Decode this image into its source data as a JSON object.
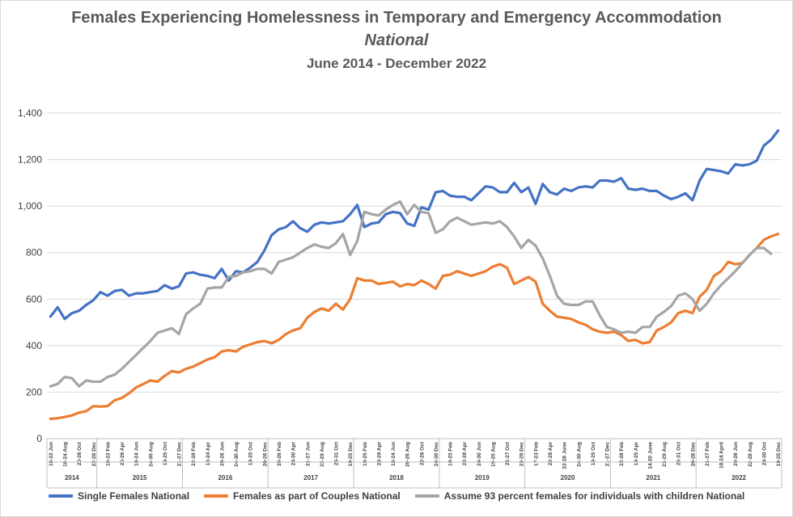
{
  "chart_data": {
    "type": "line",
    "title": "Females Experiencing Homelessness in Temporary and Emergency Accommodation",
    "subtitle": "National",
    "subtitle2": "June 2014 - December 2022",
    "ylim": [
      0,
      1400
    ],
    "yticks": [
      0,
      200,
      400,
      600,
      800,
      1000,
      1200,
      1400
    ],
    "ytick_labels": [
      "0",
      "200",
      "400",
      "600",
      "800",
      "1,000",
      "1,200",
      "1,400"
    ],
    "grid": true,
    "legend_position": "bottom",
    "x_labels": [
      "16-22 Jun",
      "18-24 Aug",
      "20-26 Oct",
      "22-28 Dec",
      "16-22 Feb",
      "20-26 Apr",
      "18-24 Jun",
      "24-30 Aug",
      "19-25 Oct",
      "21-27 Dec",
      "22-28 Feb",
      "18-24 Apr",
      "20-26 Jun",
      "24-30 Aug",
      "19-25 Oct",
      "20-26 Dec",
      "20-26 Feb",
      "24-30 Apr",
      "21-27 Jun",
      "23-29 Aug",
      "25-31 Oct",
      "19-25 Dec",
      "19-25 Feb",
      "23-29 Apr",
      "18-24 Jun",
      "20-26 Aug",
      "22-28 Oct",
      "24-30 Dec",
      "19-25 Feb",
      "22-28 Apr",
      "24-30 Jun",
      "19-25 Aug",
      "21-27 Oct",
      "23-29 Dec",
      "17-23 Feb",
      "22-28 Apr",
      "22-28 June",
      "24-30 Aug",
      "19-25 Oct",
      "21-27 Dec",
      "22-28 Feb",
      "19-25 Apr",
      "14-20 June",
      "23-29 Aug",
      "25-31 Oct",
      "20-26 Dec",
      "21-27 Feb",
      "18-24 April",
      "20-26 Jun",
      "22-28 Aug",
      "24-30 Oct",
      "19-25 Dec"
    ],
    "year_groups": [
      {
        "label": "2014",
        "months": 7
      },
      {
        "label": "2015",
        "months": 12
      },
      {
        "label": "2016",
        "months": 12
      },
      {
        "label": "2017",
        "months": 12
      },
      {
        "label": "2018",
        "months": 12
      },
      {
        "label": "2019",
        "months": 12
      },
      {
        "label": "2020",
        "months": 12
      },
      {
        "label": "2021",
        "months": 12
      },
      {
        "label": "2022",
        "months": 12
      }
    ],
    "n_points": 103,
    "series": [
      {
        "name": "Single Females National",
        "color": "#4472C4",
        "values": [
          525,
          565,
          515,
          540,
          550,
          575,
          595,
          630,
          615,
          635,
          640,
          615,
          625,
          625,
          630,
          635,
          660,
          645,
          655,
          710,
          715,
          705,
          700,
          690,
          730,
          680,
          720,
          715,
          735,
          760,
          810,
          875,
          900,
          910,
          935,
          905,
          890,
          920,
          930,
          925,
          930,
          935,
          965,
          1005,
          910,
          925,
          930,
          965,
          975,
          970,
          925,
          915,
          995,
          985,
          1060,
          1065,
          1045,
          1040,
          1040,
          1025,
          1055,
          1085,
          1080,
          1060,
          1060,
          1100,
          1060,
          1080,
          1010,
          1095,
          1060,
          1050,
          1075,
          1065,
          1080,
          1085,
          1080,
          1110,
          1110,
          1105,
          1120,
          1075,
          1070,
          1075,
          1065,
          1065,
          1045,
          1030,
          1040,
          1055,
          1025,
          1110,
          1160,
          1155,
          1150,
          1140,
          1180,
          1175,
          1180,
          1195,
          1260,
          1285,
          1325
        ]
      },
      {
        "name": "Females as part of Couples National",
        "color": "#ED7D31",
        "values": [
          85,
          88,
          93,
          100,
          112,
          118,
          140,
          138,
          140,
          165,
          175,
          195,
          220,
          235,
          250,
          245,
          270,
          290,
          285,
          300,
          310,
          325,
          340,
          350,
          375,
          380,
          375,
          395,
          405,
          415,
          420,
          410,
          425,
          450,
          465,
          475,
          520,
          545,
          560,
          550,
          580,
          555,
          600,
          690,
          680,
          680,
          665,
          670,
          675,
          655,
          665,
          660,
          680,
          665,
          645,
          700,
          705,
          720,
          710,
          700,
          710,
          720,
          740,
          750,
          735,
          665,
          680,
          695,
          675,
          580,
          550,
          525,
          520,
          515,
          500,
          490,
          470,
          460,
          455,
          460,
          445,
          420,
          425,
          410,
          415,
          465,
          480,
          500,
          540,
          550,
          540,
          610,
          640,
          700,
          720,
          760,
          750,
          755,
          790,
          820,
          855,
          870,
          880
        ]
      },
      {
        "name": "Assume 93 percent females for individuals with children National",
        "color": "#A5A5A5",
        "values": [
          225,
          235,
          265,
          260,
          225,
          250,
          245,
          245,
          265,
          275,
          300,
          330,
          360,
          390,
          420,
          455,
          465,
          475,
          450,
          535,
          560,
          580,
          645,
          650,
          650,
          695,
          700,
          715,
          720,
          730,
          730,
          710,
          760,
          770,
          780,
          800,
          820,
          835,
          825,
          820,
          840,
          880,
          790,
          850,
          975,
          965,
          960,
          985,
          1005,
          1020,
          965,
          1005,
          975,
          970,
          885,
          900,
          935,
          950,
          935,
          920,
          925,
          930,
          925,
          935,
          910,
          870,
          820,
          855,
          830,
          775,
          700,
          615,
          580,
          575,
          575,
          590,
          590,
          530,
          480,
          470,
          455,
          460,
          455,
          480,
          480,
          525,
          545,
          570,
          615,
          625,
          600,
          550,
          580,
          625,
          660,
          690,
          720,
          755,
          790,
          820,
          820,
          795
        ]
      }
    ]
  }
}
